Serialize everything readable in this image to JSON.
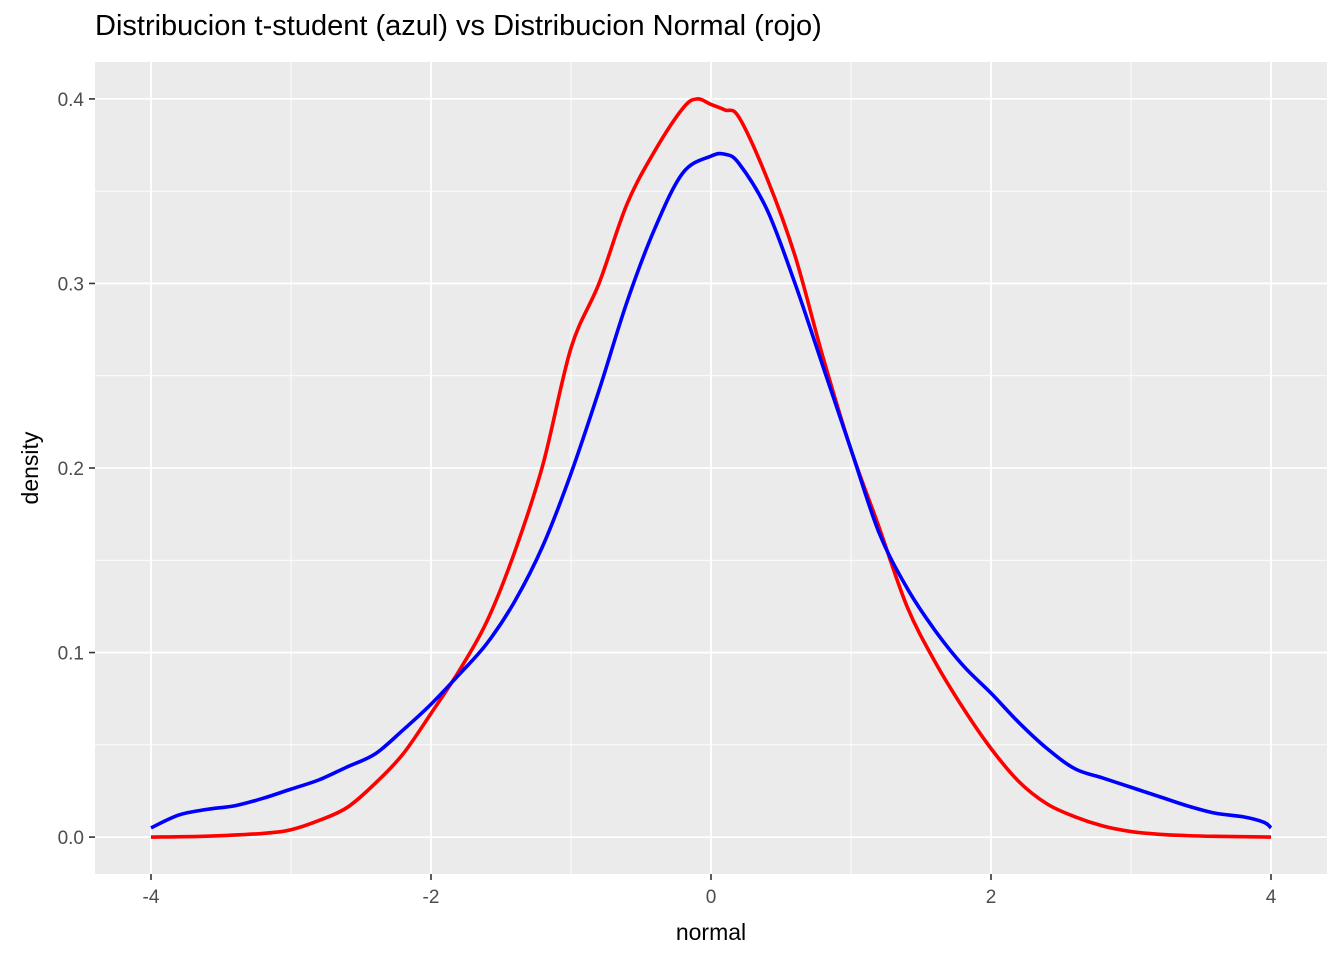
{
  "chart_data": {
    "type": "line",
    "title": "Distribucion t-student (azul) vs Distribucion Normal (rojo)",
    "xlabel": "normal",
    "ylabel": "density",
    "xlim": [
      -4.4,
      4.4
    ],
    "ylim": [
      -0.02,
      0.42
    ],
    "x_ticks": [
      -4,
      -2,
      0,
      2,
      4
    ],
    "x_tick_labels": [
      "-4",
      "-2",
      "0",
      "2",
      "4"
    ],
    "y_ticks": [
      0.0,
      0.1,
      0.2,
      0.3,
      0.4
    ],
    "y_tick_labels": [
      "0.0",
      "0.1",
      "0.2",
      "0.3",
      "0.4"
    ],
    "grid": true,
    "legend": "none",
    "series": [
      {
        "color": "#FF0000",
        "x": [
          -4.0,
          -3.6,
          -3.2,
          -3.0,
          -2.8,
          -2.6,
          -2.4,
          -2.2,
          -2.0,
          -1.8,
          -1.6,
          -1.4,
          -1.2,
          -1.0,
          -0.8,
          -0.6,
          -0.4,
          -0.2,
          -0.1,
          0.0,
          0.1,
          0.2,
          0.4,
          0.6,
          0.8,
          1.0,
          1.2,
          1.4,
          1.6,
          1.8,
          2.0,
          2.2,
          2.4,
          2.6,
          2.8,
          3.0,
          3.2,
          3.4,
          3.6,
          3.8,
          4.0
        ],
        "y": [
          0.0,
          0.0005,
          0.002,
          0.004,
          0.009,
          0.016,
          0.029,
          0.045,
          0.067,
          0.09,
          0.117,
          0.155,
          0.202,
          0.265,
          0.3,
          0.343,
          0.372,
          0.395,
          0.4,
          0.397,
          0.394,
          0.39,
          0.357,
          0.315,
          0.26,
          0.21,
          0.168,
          0.125,
          0.095,
          0.07,
          0.048,
          0.03,
          0.018,
          0.011,
          0.006,
          0.003,
          0.0015,
          0.0008,
          0.0004,
          0.0002,
          0.0
        ]
      },
      {
        "color": "#0000FF",
        "x": [
          -4.0,
          -3.8,
          -3.6,
          -3.4,
          -3.2,
          -3.0,
          -2.8,
          -2.6,
          -2.4,
          -2.2,
          -2.0,
          -1.8,
          -1.6,
          -1.4,
          -1.2,
          -1.0,
          -0.8,
          -0.6,
          -0.4,
          -0.2,
          0.0,
          0.1,
          0.2,
          0.4,
          0.6,
          0.8,
          1.0,
          1.2,
          1.4,
          1.6,
          1.8,
          2.0,
          2.2,
          2.4,
          2.6,
          2.8,
          3.0,
          3.2,
          3.4,
          3.6,
          3.8,
          3.95,
          4.0
        ],
        "y": [
          0.005,
          0.012,
          0.015,
          0.017,
          0.021,
          0.026,
          0.031,
          0.038,
          0.045,
          0.058,
          0.072,
          0.088,
          0.105,
          0.128,
          0.158,
          0.197,
          0.242,
          0.29,
          0.33,
          0.36,
          0.369,
          0.37,
          0.365,
          0.34,
          0.3,
          0.255,
          0.21,
          0.165,
          0.135,
          0.112,
          0.093,
          0.078,
          0.062,
          0.048,
          0.037,
          0.032,
          0.027,
          0.022,
          0.017,
          0.013,
          0.011,
          0.008,
          0.005
        ]
      }
    ]
  }
}
